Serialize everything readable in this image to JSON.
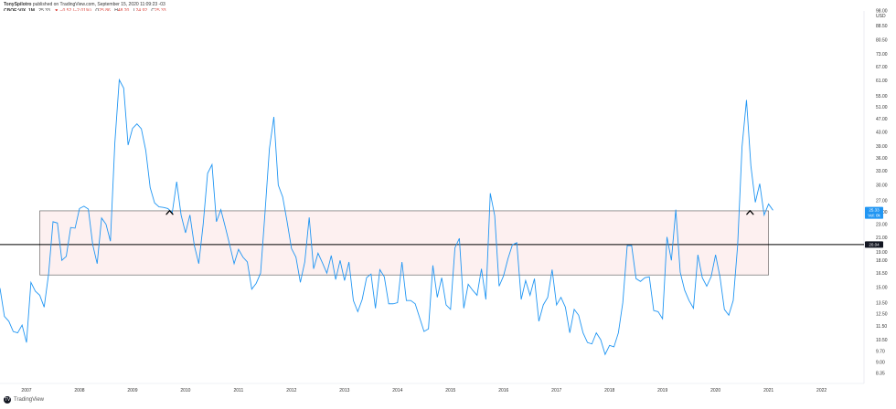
{
  "header": {
    "publisher_line": {
      "user": "TonySpilotro",
      "rest": " published on TradingView.com, September 15, 2020 11:09:23 -03"
    },
    "symbol": "CBOE:VIX, 1M",
    "last_value": "25.33",
    "change": "▼ −0.52 (−2.01%)",
    "open_label": "O",
    "open": "25.86",
    "high_label": "H",
    "high": "48.20",
    "low_label": "L",
    "low": "24.92",
    "close_label": "C",
    "close": "25.33"
  },
  "footer": {
    "logo_glyph": "TV",
    "brand": "TradingView"
  },
  "colors": {
    "line": "#2196f3",
    "box_fill": "#fdf0f0",
    "box_stroke": "#555555",
    "hline": "#000000",
    "badge_blue": "#2196f3",
    "badge_dark": "#131722",
    "text": "#333333"
  },
  "chart_data": {
    "type": "line",
    "symbol": "CBOE:VIX",
    "interval": "1M",
    "log_scale": true,
    "grid": false,
    "ylim": [
      7.8,
      98
    ],
    "xlim": [
      2006.5,
      2022.8
    ],
    "y_unit": "USD",
    "y_ticks": [
      "98.00",
      "88.50",
      "80.50",
      "73.00",
      "67.00",
      "61.00",
      "55.00",
      "51.00",
      "47.00",
      "43.00",
      "39.00",
      "36.00",
      "33.00",
      "30.00",
      "27.00",
      "25.00",
      "23.00",
      "21.00",
      "19.00",
      "18.00",
      "16.50",
      "15.00",
      "13.50",
      "12.50",
      "11.50",
      "10.50",
      "9.70",
      "9.00",
      "8.35"
    ],
    "y_tick_values": [
      98,
      88.5,
      80.5,
      73,
      67,
      61,
      55,
      51,
      47,
      43,
      39,
      36,
      33,
      30,
      27,
      25,
      23,
      21,
      19,
      18,
      16.5,
      15,
      13.5,
      12.5,
      11.5,
      10.5,
      9.7,
      9,
      8.35
    ],
    "x_ticks": [
      "2007",
      "2008",
      "2009",
      "2010",
      "2011",
      "2012",
      "2013",
      "2014",
      "2015",
      "2016",
      "2017",
      "2018",
      "2019",
      "2020",
      "2021",
      "2022"
    ],
    "x_tick_values": [
      2007,
      2008,
      2009,
      2010,
      2011,
      2012,
      2013,
      2014,
      2015,
      2016,
      2017,
      2018,
      2019,
      2020,
      2021,
      2022
    ],
    "start_year": 2006.5,
    "step": 0.08333,
    "values": [
      14.9,
      12.3,
      11.9,
      11.1,
      11.0,
      11.6,
      10.3,
      15.5,
      14.6,
      14.2,
      13.1,
      16.4,
      23.4,
      23.2,
      18.0,
      18.5,
      22.5,
      22.4,
      25.6,
      26.0,
      25.5,
      20.0,
      17.6,
      24.0,
      23.0,
      20.5,
      40.0,
      61.4,
      58.0,
      39.4,
      44.1,
      45.5,
      44.0,
      38.0,
      29.5,
      26.6,
      25.9,
      25.8,
      25.6,
      24.9,
      30.7,
      24.5,
      21.7,
      24.5,
      19.9,
      17.6,
      23.0,
      32.5,
      34.5,
      23.4,
      25.4,
      22.6,
      20.0,
      17.6,
      19.4,
      18.4,
      17.8,
      14.8,
      15.4,
      16.5,
      24.9,
      38.5,
      47.7,
      30.0,
      27.7,
      23.4,
      19.5,
      18.4,
      15.5,
      17.8,
      24.1,
      17.0,
      18.9,
      17.7,
      16.5,
      18.6,
      15.8,
      18.0,
      15.7,
      17.8,
      13.7,
      12.7,
      13.8,
      16.0,
      16.4,
      13.0,
      16.9,
      16.1,
      13.4,
      13.4,
      13.5,
      17.8,
      13.7,
      13.7,
      13.4,
      12.2,
      11.1,
      11.3,
      17.4,
      14.0,
      16.0,
      13.3,
      12.9,
      19.6,
      20.9,
      13.0,
      15.3,
      14.7,
      14.2,
      17.0,
      13.8,
      28.4,
      24.4,
      15.1,
      16.2,
      18.2,
      20.0,
      20.3,
      13.8,
      15.7,
      14.2,
      15.9,
      11.9,
      13.3,
      14.0,
      16.9,
      13.3,
      14.0,
      13.1,
      11.0,
      12.9,
      12.4,
      11.0,
      10.3,
      10.2,
      11.0,
      10.5,
      9.5,
      10.1,
      10.0,
      11.0,
      13.5,
      19.9,
      19.9,
      15.9,
      15.6,
      16.0,
      16.1,
      12.8,
      12.7,
      12.1,
      21.1,
      18.0,
      25.4,
      16.6,
      14.7,
      13.7,
      13.0,
      18.7,
      16.0,
      15.1,
      16.1,
      18.7,
      16.1,
      12.9,
      12.4,
      13.7,
      19.9,
      39.0,
      53.5,
      34.2,
      26.7,
      30.3,
      24.5,
      26.4,
      25.3
    ]
  },
  "annotations": {
    "box": {
      "ymin": 16.3,
      "ymax": 25.2,
      "xstart": 2007.25,
      "xend": 2021.0
    },
    "hline_value": 20.04,
    "hline_label": "20.04",
    "last_badge_value": 25.33,
    "last_badge_label": "25.33",
    "last_badge_sub": "Vol: 0k",
    "markers": [
      {
        "x": 2009.7,
        "y": 25.0
      },
      {
        "x": 2020.65,
        "y": 25.0
      }
    ],
    "marker_glyph": "^"
  }
}
